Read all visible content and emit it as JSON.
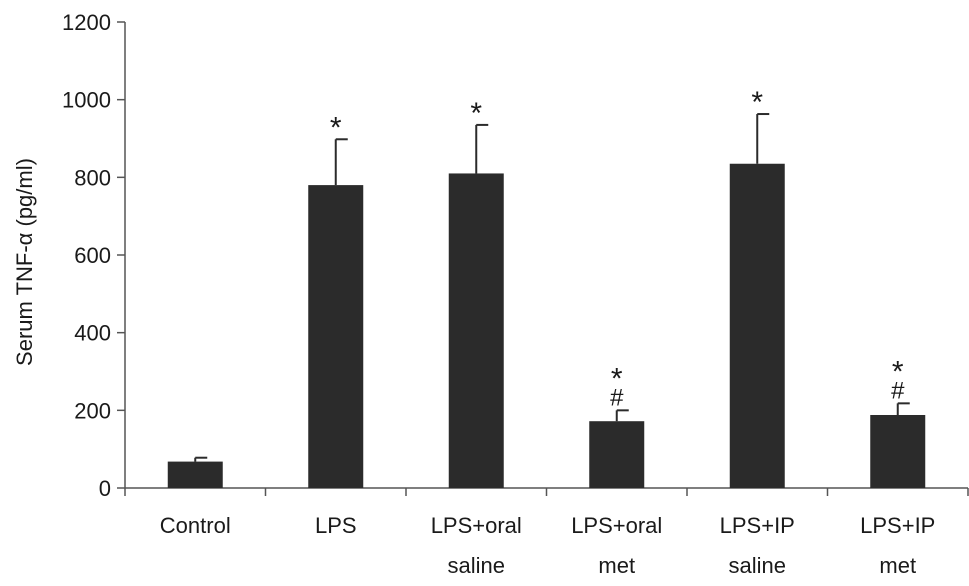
{
  "chart_data": {
    "type": "bar",
    "ylabel": "Serum TNF-α (pg/ml)",
    "ylim": [
      0,
      1200
    ],
    "yticks": [
      "0",
      "200",
      "400",
      "600",
      "800",
      "1000",
      "1200"
    ],
    "categories": [
      [
        "Control"
      ],
      [
        "LPS"
      ],
      [
        "LPS+oral",
        "saline"
      ],
      [
        "LPS+oral",
        "met"
      ],
      [
        "LPS+IP",
        "saline"
      ],
      [
        "LPS+IP",
        "met"
      ]
    ],
    "values": [
      68,
      780,
      810,
      172,
      835,
      188
    ],
    "errors": [
      10,
      118,
      125,
      28,
      128,
      30
    ],
    "significance": [
      [],
      [
        "*"
      ],
      [
        "*"
      ],
      [
        "*",
        "#"
      ],
      [
        "*"
      ],
      [
        "*",
        "#"
      ]
    ],
    "colors": {
      "bar": "#2b2b2b",
      "axis": "#555555"
    }
  }
}
